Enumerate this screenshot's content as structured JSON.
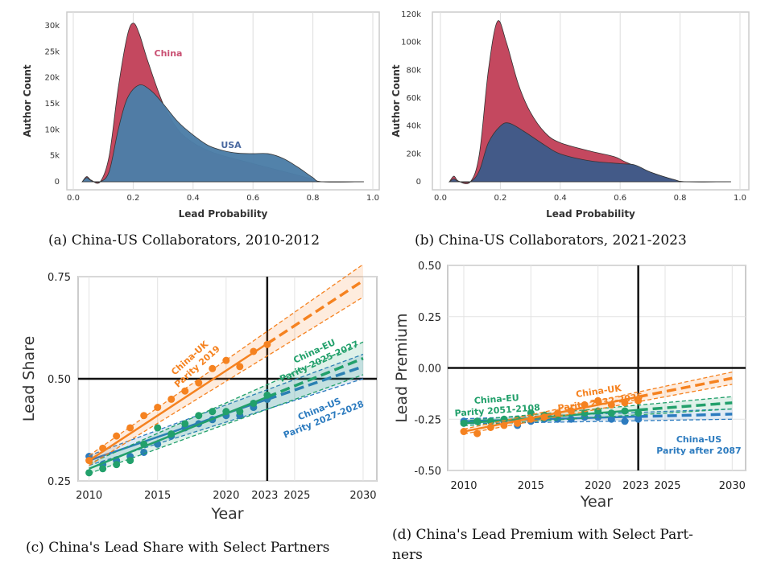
{
  "colors": {
    "china": "#c4485f",
    "usa": "#3f5b8a",
    "usa_tail": "#4d7ea8",
    "uk": "#f58220",
    "eu": "#22a06b",
    "us": "#2c7bbf"
  },
  "chart_data": [
    {
      "type": "area",
      "id": "a",
      "caption": "(a) China-US Collaborators, 2010-2012",
      "xlabel": "Lead Probability",
      "ylabel": "Author Count",
      "xlim": [
        0,
        1
      ],
      "ylim": [
        0,
        30000
      ],
      "xticks": [
        "0.0",
        "0.2",
        "0.4",
        "0.6",
        "0.8",
        "1.0"
      ],
      "yticks": [
        "0",
        "5k",
        "10k",
        "15k",
        "20k",
        "25k",
        "30k"
      ],
      "grid": "vertical",
      "series": [
        {
          "name": "China",
          "x": [
            0.03,
            0.045,
            0.06,
            0.09,
            0.12,
            0.15,
            0.18,
            0.2,
            0.22,
            0.25,
            0.3,
            0.35,
            0.4,
            0.45,
            0.5,
            0.6,
            0.7,
            0.8,
            0.83,
            0.97
          ],
          "y": [
            0,
            1000,
            300,
            0,
            5000,
            18000,
            28000,
            30500,
            28500,
            23000,
            15000,
            10000,
            7500,
            6000,
            5000,
            3500,
            2000,
            500,
            0,
            0
          ]
        },
        {
          "name": "USA",
          "x": [
            0.03,
            0.045,
            0.06,
            0.09,
            0.12,
            0.15,
            0.18,
            0.22,
            0.26,
            0.3,
            0.35,
            0.4,
            0.45,
            0.5,
            0.55,
            0.6,
            0.65,
            0.7,
            0.75,
            0.8,
            0.83,
            0.97
          ],
          "y": [
            0,
            800,
            200,
            0,
            2000,
            10000,
            16000,
            18600,
            17500,
            15000,
            11500,
            9000,
            7000,
            6000,
            5500,
            5400,
            5400,
            4500,
            2800,
            800,
            0,
            0
          ]
        }
      ]
    },
    {
      "type": "area",
      "id": "b",
      "caption": "(b) China-US Collaborators, 2021-2023",
      "xlabel": "Lead Probability",
      "ylabel": "Author Count",
      "xlim": [
        0,
        1
      ],
      "ylim": [
        0,
        120000
      ],
      "xticks": [
        "0.0",
        "0.2",
        "0.4",
        "0.6",
        "0.8",
        "1.0"
      ],
      "yticks": [
        "0",
        "20k",
        "40k",
        "60k",
        "80k",
        "100k",
        "120k"
      ],
      "grid": "vertical",
      "series": [
        {
          "name": "China",
          "x": [
            0.03,
            0.045,
            0.06,
            0.1,
            0.13,
            0.16,
            0.19,
            0.22,
            0.26,
            0.3,
            0.35,
            0.4,
            0.5,
            0.58,
            0.62,
            0.7,
            0.78,
            0.82,
            0.97
          ],
          "y": [
            0,
            4000,
            500,
            0,
            20000,
            80000,
            115000,
            100000,
            70000,
            50000,
            35000,
            28000,
            22000,
            18000,
            14000,
            7000,
            1500,
            0,
            0
          ]
        },
        {
          "name": "USA",
          "x": [
            0.03,
            0.045,
            0.06,
            0.1,
            0.13,
            0.16,
            0.2,
            0.23,
            0.28,
            0.35,
            0.4,
            0.5,
            0.6,
            0.65,
            0.7,
            0.78,
            0.82,
            0.97
          ],
          "y": [
            0,
            2000,
            300,
            0,
            8000,
            28000,
            40000,
            42000,
            36000,
            26000,
            20000,
            15000,
            13000,
            12000,
            7000,
            1500,
            0,
            0
          ]
        }
      ]
    },
    {
      "type": "scatter",
      "id": "c",
      "caption": "(c) China's Lead Share with Select Partners",
      "xlabel": "Year",
      "ylabel": "Lead Share",
      "xlim": [
        2009.2,
        2031
      ],
      "ylim": [
        0.25,
        0.75
      ],
      "xticks": [
        "2010",
        "2015",
        "2020",
        "2023",
        "2025",
        "2030"
      ],
      "yticks": [
        "0.25",
        "0.50",
        "0.75"
      ],
      "reference": {
        "x": 2023,
        "y": 0.5
      },
      "years": [
        2010,
        2011,
        2012,
        2013,
        2014,
        2015,
        2016,
        2017,
        2018,
        2019,
        2020,
        2021,
        2022,
        2023
      ],
      "series": [
        {
          "key": "us",
          "label": [
            "China-US",
            "Parity 2027-2028"
          ],
          "points": [
            0.31,
            0.29,
            0.3,
            0.31,
            0.32,
            0.34,
            0.36,
            0.38,
            0.39,
            0.4,
            0.41,
            0.41,
            0.43,
            0.45
          ],
          "fit": [
            0.3,
            0.53
          ],
          "band_2030": [
            0.5,
            0.56
          ]
        },
        {
          "key": "eu",
          "label": [
            "China-EU",
            "Parity 2025-2027"
          ],
          "points": [
            0.27,
            0.28,
            0.29,
            0.3,
            0.34,
            0.38,
            0.365,
            0.39,
            0.41,
            0.42,
            0.42,
            0.42,
            0.44,
            0.46
          ],
          "fit": [
            0.28,
            0.55
          ],
          "band_2030": [
            0.51,
            0.59
          ]
        },
        {
          "key": "uk",
          "label": [
            "China-UK",
            "Parity 2019"
          ],
          "points": [
            0.3,
            0.33,
            0.36,
            0.38,
            0.41,
            0.43,
            0.45,
            0.47,
            0.49,
            0.525,
            0.545,
            0.53,
            0.567,
            0.584
          ],
          "fit": [
            0.3,
            0.74
          ],
          "band_2030": [
            0.7,
            0.78
          ]
        }
      ]
    },
    {
      "type": "scatter",
      "id": "d",
      "caption": "(d) China's Lead Premium with Select Part-",
      "caption2": "ners",
      "xlabel": "Year",
      "ylabel": "Lead Premium",
      "xlim": [
        2008.8,
        2031
      ],
      "ylim": [
        -0.5,
        0.5
      ],
      "xticks": [
        "2010",
        "2015",
        "2020",
        "2023",
        "2025",
        "2030"
      ],
      "yticks": [
        "0.50",
        "0.25",
        "0.00",
        "-0.25",
        "-0.50"
      ],
      "reference": {
        "x": 2023,
        "y": 0
      },
      "years": [
        2010,
        2011,
        2012,
        2013,
        2014,
        2015,
        2016,
        2017,
        2018,
        2019,
        2020,
        2021,
        2022,
        2023
      ],
      "series": [
        {
          "key": "us",
          "label": [
            "China-US",
            "Parity after 2087"
          ],
          "points": [
            -0.26,
            -0.26,
            -0.26,
            -0.26,
            -0.28,
            -0.26,
            -0.25,
            -0.25,
            -0.25,
            -0.24,
            -0.24,
            -0.25,
            -0.26,
            -0.25
          ],
          "fit": [
            -0.26,
            -0.225
          ],
          "band_2030": [
            -0.25,
            -0.2
          ]
        },
        {
          "key": "eu",
          "label": [
            "China-EU",
            "Parity 2051-2108"
          ],
          "points": [
            -0.27,
            -0.26,
            -0.26,
            -0.25,
            -0.25,
            -0.22,
            -0.23,
            -0.23,
            -0.21,
            -0.22,
            -0.21,
            -0.22,
            -0.21,
            -0.22
          ],
          "fit": [
            -0.27,
            -0.17
          ],
          "band_2030": [
            -0.2,
            -0.14
          ]
        },
        {
          "key": "uk",
          "label": [
            "China-UK",
            "Parity 2032-2036"
          ],
          "points": [
            -0.31,
            -0.32,
            -0.29,
            -0.28,
            -0.27,
            -0.25,
            -0.24,
            -0.22,
            -0.21,
            -0.18,
            -0.16,
            -0.18,
            -0.17,
            -0.16
          ],
          "fit": [
            -0.31,
            -0.05
          ],
          "band_2030": [
            -0.08,
            -0.02
          ]
        }
      ]
    }
  ]
}
